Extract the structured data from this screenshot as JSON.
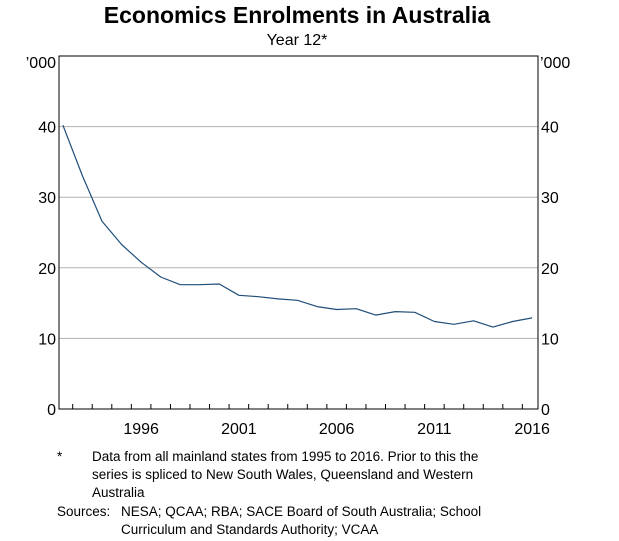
{
  "chart_data": {
    "type": "line",
    "title": "Economics Enrolments in Australia",
    "subtitle": "Year 12*",
    "y_unit_left": "’000",
    "y_unit_right": "’000",
    "ylim": [
      0,
      50
    ],
    "yticks": [
      0,
      10,
      20,
      30,
      40
    ],
    "xlim": [
      1992.3,
      2016.8
    ],
    "xticks": [
      1996,
      2001,
      2006,
      2011,
      2016
    ],
    "grid": true,
    "series": [
      {
        "color": "#1f4e79",
        "x": [
          1992.5,
          1993.5,
          1994.5,
          1995.5,
          1996.5,
          1997.5,
          1998.5,
          1999.5,
          2000.5,
          2001.5,
          2002.5,
          2003.5,
          2004.5,
          2005.5,
          2006.5,
          2007.5,
          2008.5,
          2009.5,
          2010.5,
          2011.5,
          2012.5,
          2013.5,
          2014.5,
          2015.5,
          2016.5
        ],
        "values": [
          40.2,
          33.0,
          26.6,
          23.3,
          20.8,
          18.7,
          17.6,
          17.6,
          17.7,
          16.1,
          15.9,
          15.6,
          15.4,
          14.5,
          14.1,
          14.2,
          13.3,
          13.8,
          13.7,
          12.4,
          12.0,
          12.5,
          11.6,
          12.4,
          12.9
        ]
      }
    ]
  },
  "notes": {
    "footnote_marker": "*",
    "footnote_text": "Data from all mainland states from 1995 to 2016. Prior to this the series is spliced to New South Wales, Queensland and Western Australia",
    "sources_label": "Sources:",
    "sources_text": "NESA; QCAA; RBA; SACE Board of South Australia; School Curriculum and Standards Authority; VCAA"
  }
}
